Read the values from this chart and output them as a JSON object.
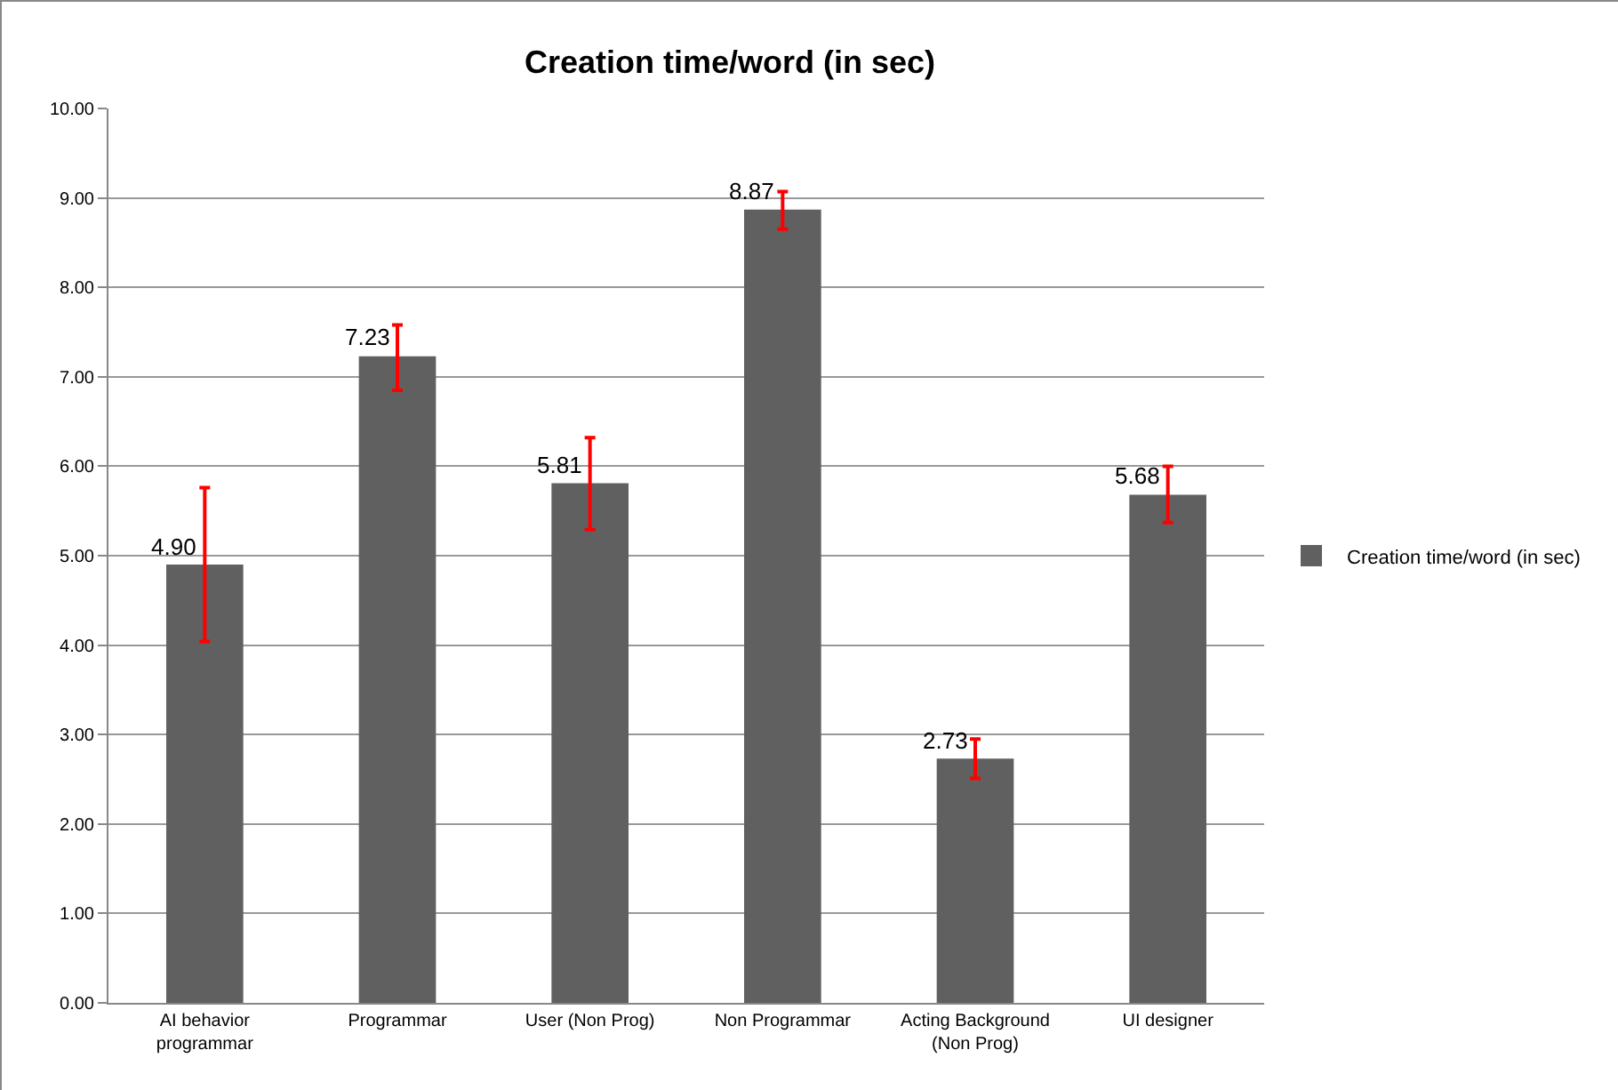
{
  "chart_data": {
    "type": "bar",
    "title": "Creation time/word (in sec)",
    "categories": [
      "AI behavior programmar",
      "Programmar",
      "User (Non Prog)",
      "Non Programmar",
      "Acting Background (Non Prog)",
      "UI designer"
    ],
    "series": [
      {
        "name": "Creation time/word (in sec)",
        "color": "#606060",
        "values": [
          4.9,
          7.23,
          5.81,
          8.87,
          2.73,
          5.68
        ],
        "value_labels": [
          "4.90",
          "7.23",
          "5.81",
          "8.87",
          "2.73",
          "5.68"
        ],
        "errors": [
          [
            4.04,
            5.76
          ],
          [
            6.85,
            7.58
          ],
          [
            5.29,
            6.32
          ],
          [
            8.65,
            9.07
          ],
          [
            2.51,
            2.95
          ],
          [
            5.37,
            6.0
          ]
        ]
      }
    ],
    "ylim": [
      0,
      10
    ],
    "yticks": [
      {
        "value": 0,
        "label": "0.00"
      },
      {
        "value": 1,
        "label": "1.00"
      },
      {
        "value": 2,
        "label": "2.00"
      },
      {
        "value": 3,
        "label": "3.00"
      },
      {
        "value": 4,
        "label": "4.00"
      },
      {
        "value": 5,
        "label": "5.00"
      },
      {
        "value": 6,
        "label": "6.00"
      },
      {
        "value": 7,
        "label": "7.00"
      },
      {
        "value": 8,
        "label": "8.00"
      },
      {
        "value": 9,
        "label": "9.00"
      },
      {
        "value": 10,
        "label": "10.00"
      }
    ],
    "grid": "y",
    "legend": "right"
  }
}
